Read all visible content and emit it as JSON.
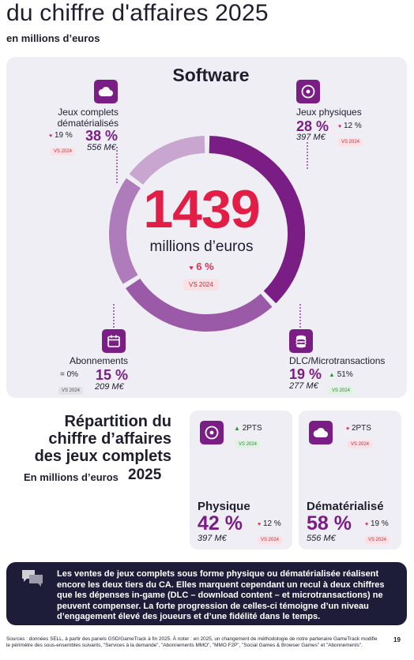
{
  "header": {
    "title": "du chiffre d'affaires 2025",
    "subtitle": "en millions d’euros"
  },
  "software": {
    "title": "Software",
    "total": "1439",
    "unit": "millions d’euros",
    "change": "6 %",
    "vs": "VS 2024",
    "segments": {
      "dematerialises": {
        "label1": "Jeux complets",
        "label2": "dématérialisés",
        "pct": "38 %",
        "change": "19 %",
        "vs": "VS 2024",
        "value": "556 M€",
        "icon": "cloud-icon"
      },
      "physiques": {
        "label": "Jeux physiques",
        "pct": "28 %",
        "change": "12 %",
        "vs": "VS 2024",
        "value": "397 M€",
        "icon": "disc-icon"
      },
      "abonnements": {
        "label": "Abonnements",
        "pct": "15 %",
        "change": "= 0%",
        "vs": "VS 2024",
        "value": "209 M€",
        "icon": "calendar-icon"
      },
      "dlc": {
        "label": "DLC/Microtransactions",
        "pct": "19 %",
        "change": "51%",
        "vs": "VS 2024",
        "value": "277 M€",
        "icon": "coins-icon"
      }
    },
    "ring_shares": [
      {
        "name": "Jeux complets dématérialisés",
        "share": 38,
        "color": "#7a1e86"
      },
      {
        "name": "Jeux physiques",
        "share": 28,
        "color": "#9b5aa8"
      },
      {
        "name": "DLC/Microtransactions",
        "share": 19,
        "color": "#ae7bbb"
      },
      {
        "name": "Abonnements",
        "share": 15,
        "color": "#c8a6cf"
      }
    ]
  },
  "repartition": {
    "title_lines": [
      "Répartition du",
      "chiffre d’affaires",
      "des jeux complets"
    ],
    "unit": "En millions d’euros",
    "year": "2025",
    "physique": {
      "title": "Physique",
      "share_change": "2PTS",
      "share_vs": "VS 2024",
      "pct": "42 %",
      "change": "12 %",
      "vs": "VS 2024",
      "value": "397 M€",
      "icon": "disc-icon"
    },
    "dematerialise": {
      "title": "Dématérialisé",
      "share_change": "2PTS",
      "share_vs": "VS 2024",
      "pct": "58 %",
      "change": "19 %",
      "vs": "VS 2024",
      "value": "556 M€",
      "icon": "cloud-icon"
    }
  },
  "note": {
    "text": "Les ventes de jeux complets sous forme physique ou dématérialisée réalisent encore les deux tiers du CA. Elles marquent cependant un recul à deux chiffres que les dépenses in-game (DLC – download content – et microtransactions) ne peuvent compenser. La forte progression de celles-ci témoigne d’un niveau d’engagement élevé des joueurs et d’une fidélité dans le temps.",
    "icon": "chat-bubbles-icon"
  },
  "footer": {
    "text": "Sources : données SELL, à partir des panels GSD/GameTrack à fin 2025. À noter : en 2025, un changement de méthodologie de notre partenaire GameTrack modifie le périmètre des sous-ensembles suivants, \"Services à la demande\", \"Abonnements MMO\", \"MMO F2P\", \"Social Games & Browser Games\" et \"Abonnements\".",
    "page": "19"
  },
  "colors": {
    "accent_purple": "#7a1e86",
    "big_number_red": "#e21e47",
    "down_red": "#e03050",
    "up_green": "#2a9a3a",
    "note_bg": "#1d1d3a"
  }
}
